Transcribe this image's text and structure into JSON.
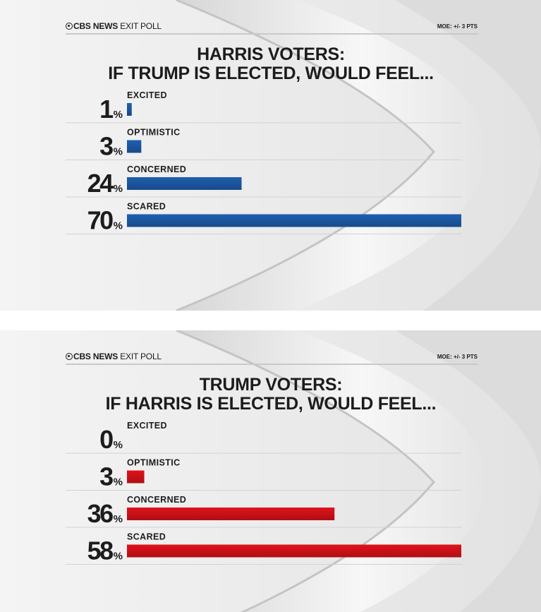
{
  "header": {
    "brand_bold": "CBS NEWS",
    "brand_light": "EXIT POLL",
    "moe": "MOE: +/- 3 PTS"
  },
  "chart_data": [
    {
      "type": "bar",
      "orientation": "horizontal",
      "title_line1": "HARRIS VOTERS:",
      "title_line2": "IF TRUMP IS ELECTED, WOULD FEEL...",
      "categories": [
        "EXCITED",
        "OPTIMISTIC",
        "CONCERNED",
        "SCARED"
      ],
      "values": [
        1,
        3,
        24,
        70
      ],
      "value_labels": [
        "1%",
        "3%",
        "24%",
        "70%"
      ],
      "color": "#1f5fb0",
      "xlim": [
        0,
        70
      ]
    },
    {
      "type": "bar",
      "orientation": "horizontal",
      "title_line1": "TRUMP VOTERS:",
      "title_line2": "IF HARRIS IS ELECTED, WOULD FEEL...",
      "categories": [
        "EXCITED",
        "OPTIMISTIC",
        "CONCERNED",
        "SCARED"
      ],
      "values": [
        0,
        3,
        36,
        58
      ],
      "value_labels": [
        "0%",
        "3%",
        "36%",
        "58%"
      ],
      "color": "#e0121b",
      "xlim": [
        0,
        58
      ]
    }
  ]
}
